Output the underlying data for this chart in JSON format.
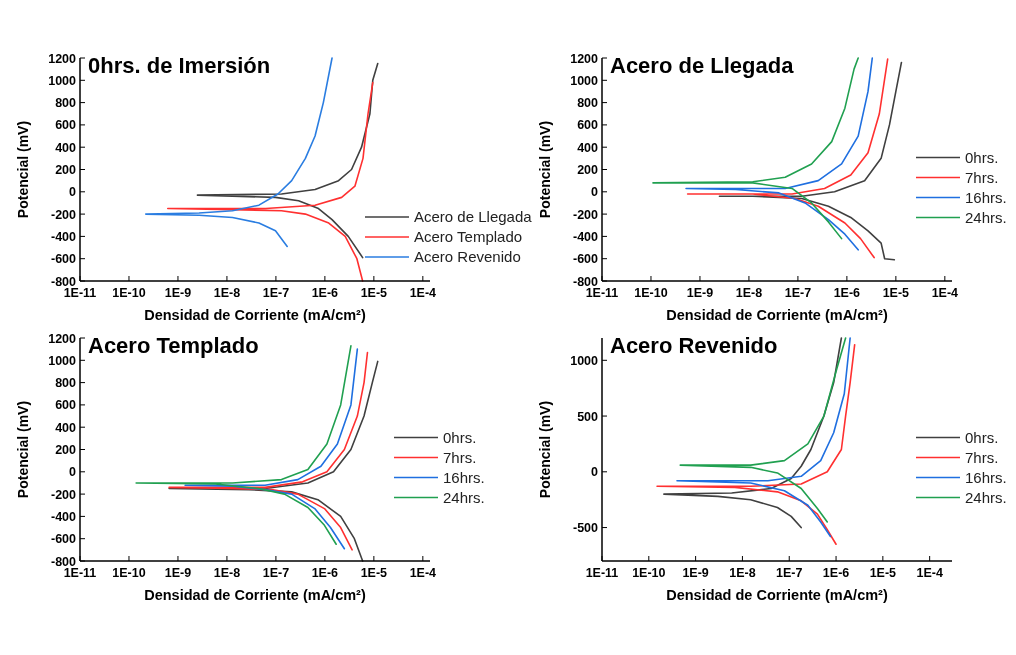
{
  "chart_data": [
    {
      "type": "line",
      "title": "0hrs. de Imersión",
      "xlabel": "Densidad de Corriente (mA/cm²)",
      "ylabel": "Potencial (mV)",
      "log": "x",
      "legend": "bottom right",
      "xlim": [
        1e-11,
        0.00014
      ],
      "xticks": [
        {
          "value": 1e-11,
          "label": "1E-11"
        },
        {
          "value": 1e-10,
          "label": "1E-10"
        },
        {
          "value": 1e-09,
          "label": "1E-9"
        },
        {
          "value": 1e-08,
          "label": "1E-8"
        },
        {
          "value": 1e-07,
          "label": "1E-7"
        },
        {
          "value": 1e-06,
          "label": "1E-6"
        },
        {
          "value": 1e-05,
          "label": "1E-5"
        },
        {
          "value": 0.0001,
          "label": "1E-4"
        }
      ],
      "ylim": [
        -800,
        1200
      ],
      "yticks": [
        -800,
        -600,
        -400,
        -200,
        0,
        200,
        400,
        600,
        800,
        1000,
        1200
      ],
      "series": [
        {
          "name": "Acero de Llegada",
          "color": "#404040",
          "x": [
            5.9e-06,
            3e-06,
            1.4e-06,
            7.4e-07,
            2.9e-07,
            9.8e-08,
            1.3e-08,
            2.5e-09,
            1.3e-07,
            6.3e-07,
            1.9e-06,
            3.5e-06,
            5.6e-06,
            8.3e-06,
            9.5e-06,
            1.2e-05
          ],
          "values": [
            -590,
            -400,
            -250,
            -150,
            -80,
            -50,
            -40,
            -30,
            -20,
            20,
            100,
            200,
            400,
            700,
            1000,
            1150
          ]
        },
        {
          "name": "Acero Templado",
          "color": "#ff3030",
          "x": [
            5.9e-06,
            4.5e-06,
            2.6e-06,
            1.2e-06,
            4e-07,
            1.3e-07,
            1.3e-08,
            6.2e-10,
            6.2e-08,
            6.3e-07,
            2.2e-06,
            4.1e-06,
            6e-06,
            7.6e-06,
            9.5e-06
          ],
          "values": [
            -800,
            -600,
            -400,
            -280,
            -200,
            -170,
            -160,
            -150,
            -150,
            -120,
            -50,
            50,
            300,
            700,
            980
          ]
        },
        {
          "name": "Acero Revenido",
          "color": "#2a7de1",
          "x": [
            1.7e-07,
            9.8e-08,
            4.5e-08,
            1.3e-08,
            2.7e-09,
            2.2e-10,
            2.7e-09,
            1.3e-08,
            4.5e-08,
            1.1e-07,
            2.1e-07,
            4e-07,
            6.3e-07,
            9.3e-07,
            1.4e-06
          ],
          "values": [
            -490,
            -350,
            -280,
            -230,
            -210,
            -200,
            -190,
            -170,
            -120,
            -20,
            100,
            300,
            500,
            800,
            1200
          ]
        }
      ]
    },
    {
      "type": "line",
      "title": "Acero de Llegada",
      "xlabel": "Densidad de Corriente (mA/cm²)",
      "ylabel": "Potencial (mV)",
      "log": "x",
      "legend": "right",
      "xlim": [
        1e-11,
        0.00014
      ],
      "xticks": [
        {
          "value": 1e-11,
          "label": "1E-11"
        },
        {
          "value": 1e-10,
          "label": "1E-10"
        },
        {
          "value": 1e-09,
          "label": "1E-9"
        },
        {
          "value": 1e-08,
          "label": "1E-8"
        },
        {
          "value": 1e-07,
          "label": "1E-7"
        },
        {
          "value": 1e-06,
          "label": "1E-6"
        },
        {
          "value": 1e-05,
          "label": "1E-5"
        },
        {
          "value": 0.0001,
          "label": "1E-4"
        }
      ],
      "ylim": [
        -800,
        1200
      ],
      "yticks": [
        -800,
        -600,
        -400,
        -200,
        0,
        200,
        400,
        600,
        800,
        1000,
        1200
      ],
      "series": [
        {
          "name": "0hrs.",
          "color": "#404040",
          "x": [
            9.3e-06,
            5.9e-06,
            5e-06,
            2.7e-06,
            1.2e-06,
            4.2e-07,
            1.2e-07,
            1.2e-08,
            2.5e-09,
            1.2e-07,
            5.6e-07,
            2.3e-06,
            5e-06,
            7.4e-06,
            1e-05,
            1.3e-05
          ],
          "values": [
            -610,
            -600,
            -460,
            -350,
            -230,
            -130,
            -60,
            -40,
            -40,
            -40,
            0,
            100,
            300,
            600,
            900,
            1160
          ]
        },
        {
          "name": "7hrs.",
          "color": "#ff3030",
          "x": [
            3.6e-06,
            1.9e-06,
            9.1e-07,
            2.6e-07,
            8.7e-08,
            1.2e-08,
            5.6e-10,
            7.6e-08,
            3.5e-07,
            1.2e-06,
            2.7e-06,
            4.6e-06,
            6.8e-06
          ],
          "values": [
            -590,
            -420,
            -280,
            -130,
            -60,
            -20,
            -20,
            -20,
            30,
            150,
            350,
            700,
            1190
          ]
        },
        {
          "name": "16hrs.",
          "color": "#1f6fe0",
          "x": [
            1.7e-06,
            9.1e-07,
            4.2e-07,
            1.4e-07,
            4.1e-08,
            5.4e-09,
            5.2e-10,
            5.5e-08,
            2.6e-07,
            7.8e-07,
            1.7e-06,
            2.7e-06,
            3.3e-06
          ],
          "values": [
            -520,
            -380,
            -250,
            -100,
            -10,
            20,
            30,
            30,
            100,
            250,
            500,
            900,
            1200
          ]
        },
        {
          "name": "24hrs.",
          "color": "#20a050",
          "x": [
            7.8e-07,
            4.2e-07,
            1.9e-07,
            7.6e-08,
            1.2e-08,
            1.1e-10,
            1.2e-08,
            5.5e-08,
            1.9e-07,
            4.9e-07,
            9.1e-07,
            1.4e-06,
            1.7e-06
          ],
          "values": [
            -420,
            -270,
            -100,
            30,
            80,
            80,
            90,
            130,
            250,
            450,
            750,
            1100,
            1200
          ]
        }
      ]
    },
    {
      "type": "line",
      "title": "Acero Templado",
      "xlabel": "Densidad de Corriente (mA/cm²)",
      "ylabel": "Potencial (mV)",
      "log": "x",
      "legend": "right",
      "xlim": [
        1e-11,
        0.00014
      ],
      "xticks": [
        {
          "value": 1e-11,
          "label": "1E-11"
        },
        {
          "value": 1e-10,
          "label": "1E-10"
        },
        {
          "value": 1e-09,
          "label": "1E-9"
        },
        {
          "value": 1e-08,
          "label": "1E-8"
        },
        {
          "value": 1e-07,
          "label": "1E-7"
        },
        {
          "value": 1e-06,
          "label": "1E-6"
        },
        {
          "value": 1e-05,
          "label": "1E-5"
        },
        {
          "value": 0.0001,
          "label": "1E-4"
        }
      ],
      "ylim": [
        -800,
        1200
      ],
      "yticks": [
        -800,
        -600,
        -400,
        -200,
        0,
        200,
        400,
        600,
        800,
        1000,
        1200
      ],
      "series": [
        {
          "name": "0hrs.",
          "color": "#404040",
          "x": [
            5.9e-06,
            4e-06,
            2.1e-06,
            7.2e-07,
            2.1e-07,
            2.8e-08,
            6.6e-10,
            6e-08,
            4.5e-07,
            1.5e-06,
            3.4e-06,
            6.3e-06,
            9.3e-06,
            1.2e-05
          ],
          "values": [
            -800,
            -600,
            -400,
            -250,
            -180,
            -160,
            -150,
            -150,
            -100,
            0,
            200,
            500,
            800,
            990
          ]
        },
        {
          "name": "7hrs.",
          "color": "#ff3030",
          "x": [
            3.6e-06,
            2.1e-06,
            9.8e-07,
            2.8e-07,
            8.1e-08,
            1.3e-08,
            6.6e-10,
            6e-08,
            3.5e-07,
            1.1e-06,
            2.5e-06,
            4.6e-06,
            6.3e-06,
            7.4e-06
          ],
          "values": [
            -700,
            -500,
            -330,
            -200,
            -160,
            -150,
            -140,
            -140,
            -90,
            0,
            200,
            500,
            800,
            1070
          ]
        },
        {
          "name": "16hrs.",
          "color": "#1f6fe0",
          "x": [
            2.5e-06,
            1.3e-06,
            6.2e-07,
            2.1e-07,
            6e-08,
            1.3e-08,
            1.4e-09,
            6e-08,
            2.8e-07,
            8.3e-07,
            1.8e-06,
            3.4e-06,
            4.6e-06
          ],
          "values": [
            -690,
            -500,
            -330,
            -200,
            -160,
            -130,
            -120,
            -120,
            -70,
            50,
            250,
            600,
            1100
          ]
        },
        {
          "name": "24hrs.",
          "color": "#20a050",
          "x": [
            1.7e-06,
            9.8e-07,
            4.5e-07,
            1.5e-07,
            4.4e-08,
            5.8e-09,
            1.4e-10,
            1.3e-08,
            1.3e-07,
            4.5e-07,
            1.1e-06,
            2.1e-06,
            3.4e-06
          ],
          "values": [
            -650,
            -480,
            -320,
            -200,
            -150,
            -110,
            -100,
            -100,
            -70,
            20,
            250,
            600,
            1130
          ]
        }
      ]
    },
    {
      "type": "line",
      "title": "Acero Revenido",
      "xlabel": "Densidad de Corriente (mA/cm²)",
      "ylabel": "Potencial (mV)",
      "log": "x",
      "legend": "right",
      "xlim": [
        1e-11,
        0.0003
      ],
      "xticks": [
        {
          "value": 1e-11,
          "label": "1E-11"
        },
        {
          "value": 1e-10,
          "label": "1E-10"
        },
        {
          "value": 1e-09,
          "label": "1E-9"
        },
        {
          "value": 1e-08,
          "label": "1E-8"
        },
        {
          "value": 1e-07,
          "label": "1E-7"
        },
        {
          "value": 1e-06,
          "label": "1E-6"
        },
        {
          "value": 1e-05,
          "label": "1E-5"
        },
        {
          "value": 0.0001,
          "label": "1E-4"
        }
      ],
      "ylim": [
        -800,
        1200
      ],
      "yticks": [
        -500,
        0,
        500,
        1000
      ],
      "series": [
        {
          "name": "0hrs.",
          "color": "#404040",
          "x": [
            1.8e-07,
            1.1e-07,
            5.6e-08,
            1.5e-08,
            3e-09,
            2.1e-10,
            5.9e-09,
            4.1e-08,
            1.1e-07,
            1.8e-07,
            2.9e-07,
            5.5e-07,
            8.9e-07,
            1.3e-06
          ],
          "values": [
            -500,
            -400,
            -320,
            -250,
            -220,
            -200,
            -190,
            -150,
            -60,
            50,
            200,
            500,
            800,
            1200
          ]
        },
        {
          "name": "7hrs.",
          "color": "#ff3030",
          "x": [
            1e-06,
            6.5e-07,
            4e-07,
            1.8e-07,
            5.6e-08,
            6.9e-09,
            1.5e-10,
            1.5e-08,
            1.8e-07,
            6.5e-07,
            1.3e-06,
            1.6e-06,
            2e-06,
            2.5e-06
          ],
          "values": [
            -650,
            -520,
            -380,
            -260,
            -180,
            -140,
            -130,
            -130,
            -110,
            0,
            200,
            500,
            800,
            1140
          ]
        },
        {
          "name": "16hrs.",
          "color": "#1f6fe0",
          "x": [
            7.6e-07,
            4.7e-07,
            2.5e-07,
            7.9e-08,
            1.5e-08,
            4e-10,
            3.5e-08,
            1.8e-07,
            4.7e-07,
            8.9e-07,
            1.5e-06,
            2e-06
          ],
          "values": [
            -580,
            -450,
            -300,
            -170,
            -100,
            -80,
            -80,
            -40,
            100,
            350,
            700,
            1200
          ]
        },
        {
          "name": "24hrs.",
          "color": "#20a050",
          "x": [
            6.5e-07,
            4e-07,
            1.8e-07,
            5.6e-08,
            1.5e-08,
            4.7e-10,
            1.5e-08,
            7.9e-08,
            2.5e-07,
            5.5e-07,
            1e-06,
            1.6e-06
          ],
          "values": [
            -450,
            -330,
            -150,
            -10,
            40,
            60,
            60,
            100,
            250,
            500,
            900,
            1200
          ]
        }
      ]
    }
  ]
}
